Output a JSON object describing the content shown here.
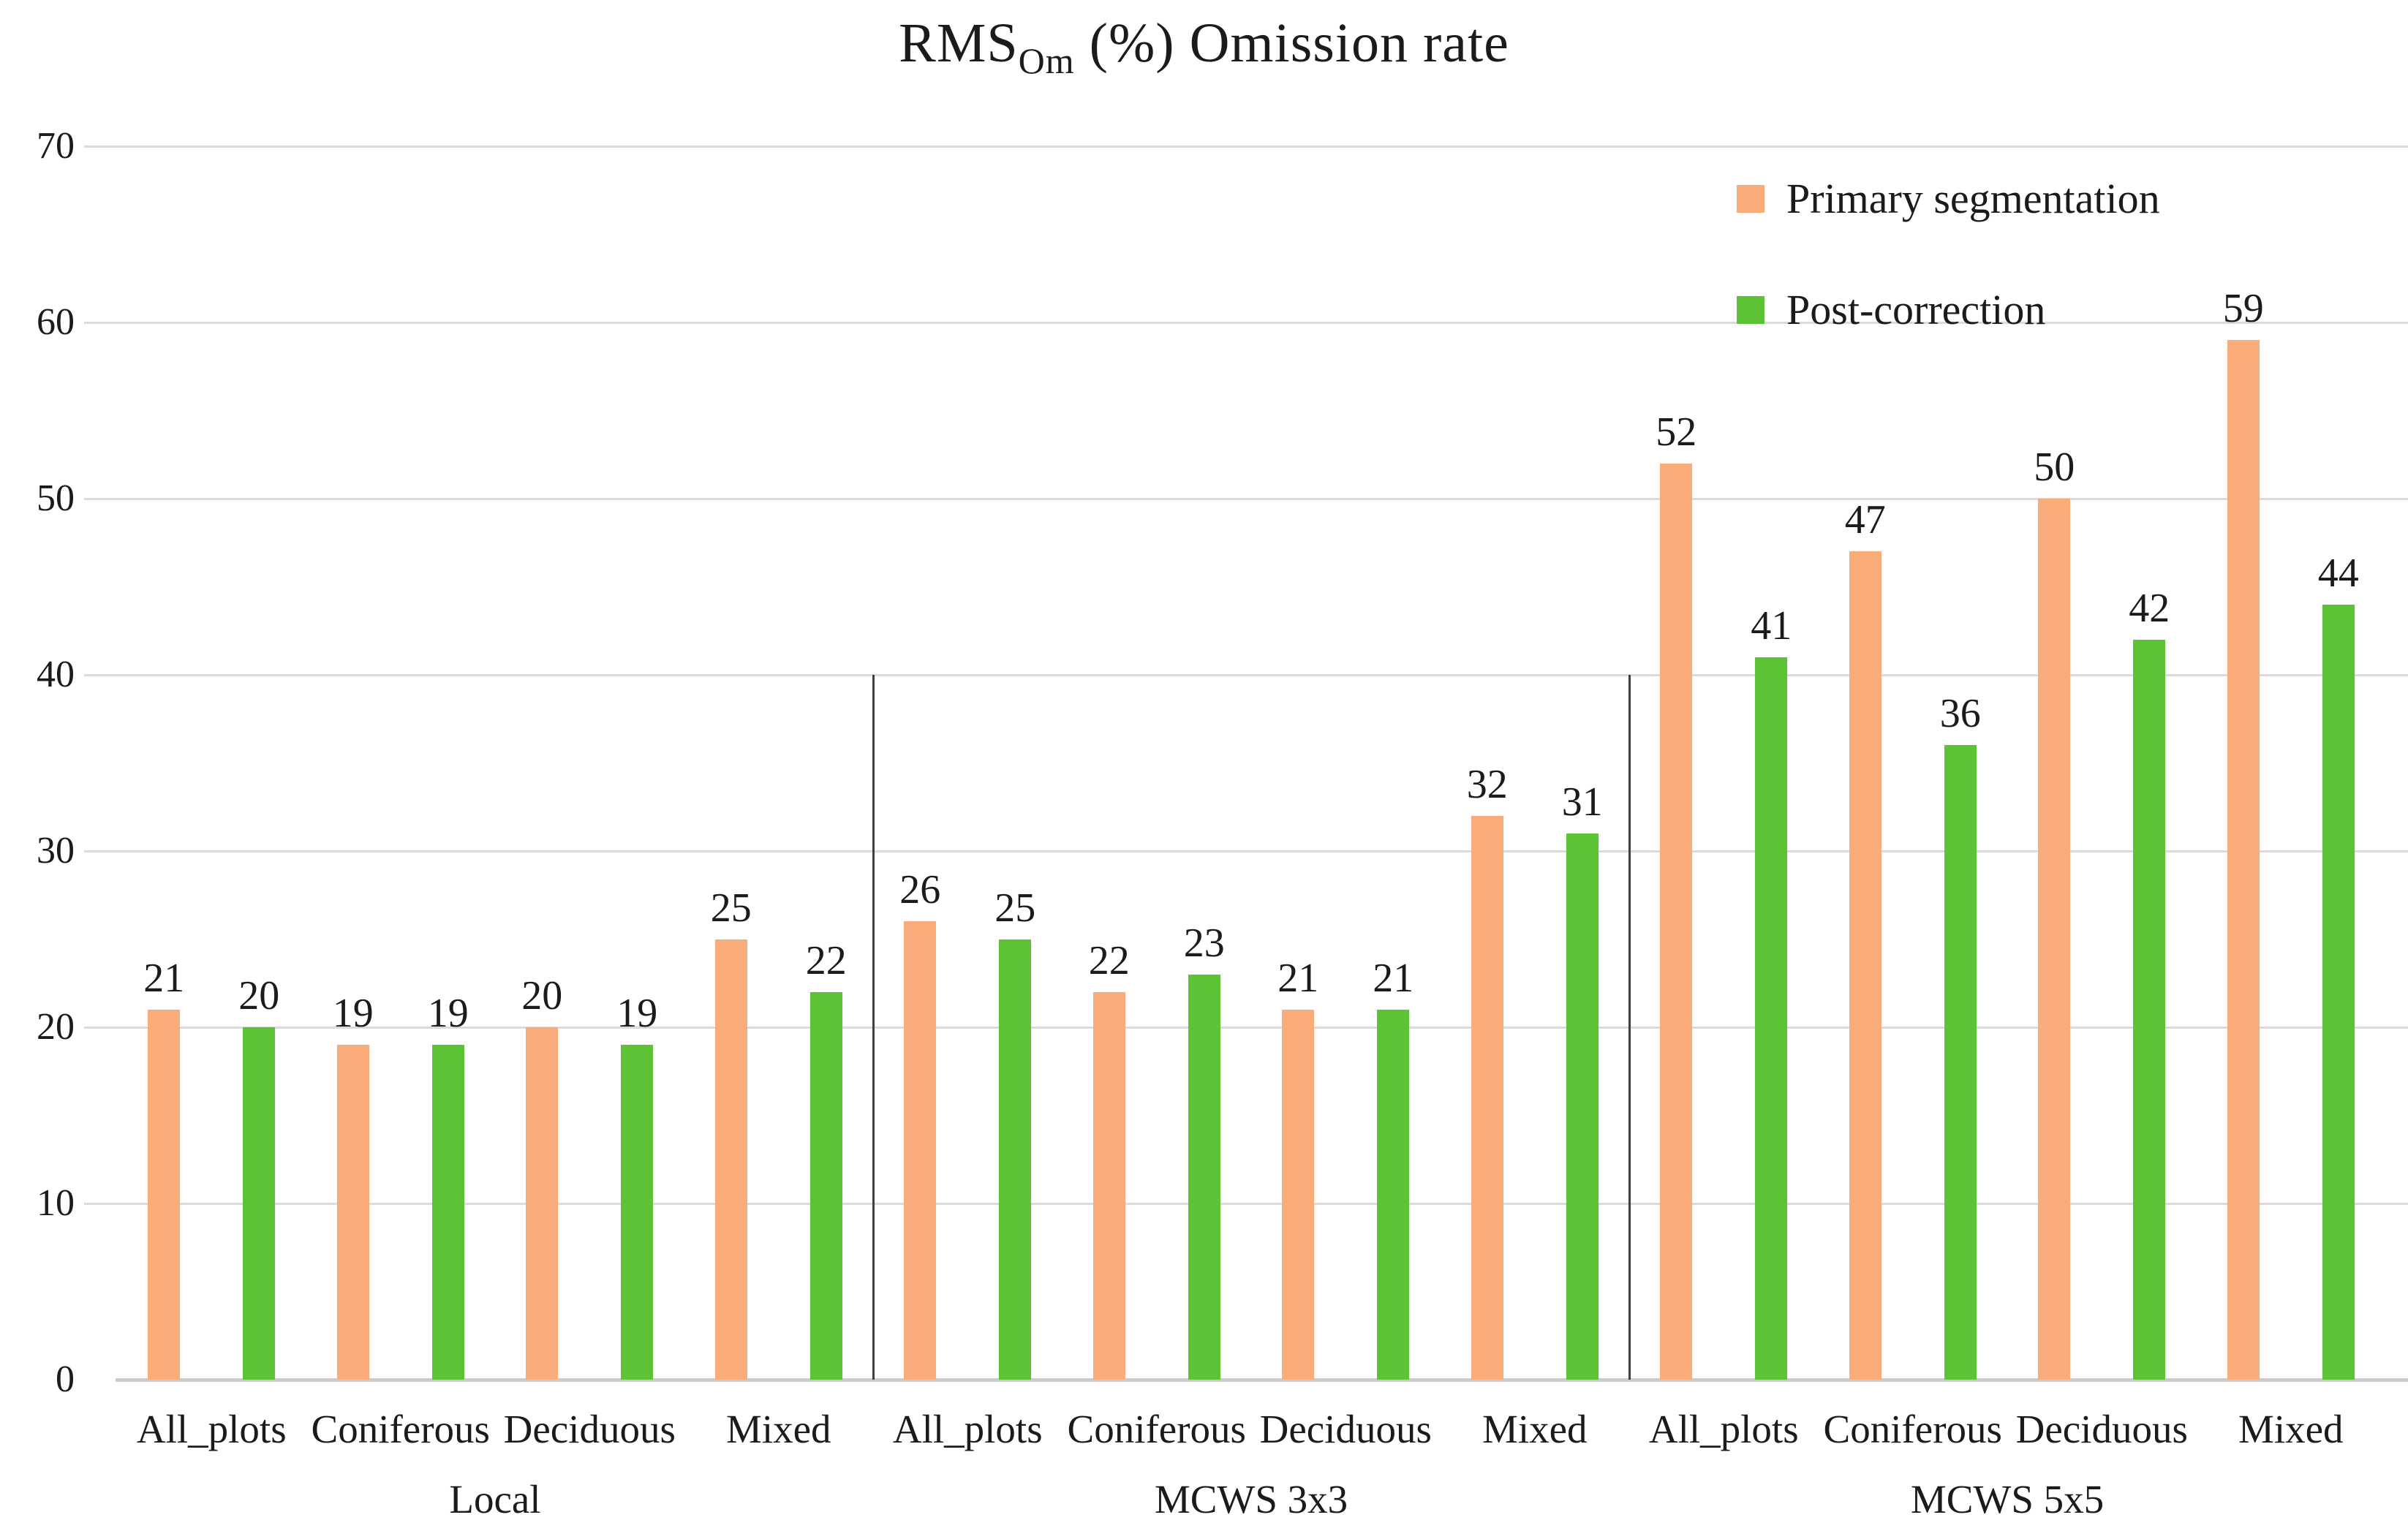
{
  "title": {
    "prefix": "RMS",
    "subscript": "Om",
    "suffix": " (%) Omission rate"
  },
  "chart_data": {
    "type": "bar",
    "title": "RMS_Om (%) Omission rate",
    "xlabel": "",
    "ylabel": "",
    "ylim": [
      0,
      70
    ],
    "yticks": [
      0,
      10,
      20,
      30,
      40,
      50,
      60,
      70
    ],
    "grid": "horizontal",
    "legend_position": "top-right",
    "group_dividers": true,
    "groups": [
      {
        "label": "Local",
        "categories": [
          "All_plots",
          "Coniferous",
          "Deciduous",
          "Mixed"
        ]
      },
      {
        "label": "MCWS 3x3",
        "categories": [
          "All_plots",
          "Coniferous",
          "Deciduous",
          "Mixed"
        ]
      },
      {
        "label": "MCWS 5x5",
        "categories": [
          "All_plots",
          "Coniferous",
          "Deciduous",
          "Mixed"
        ]
      }
    ],
    "series": [
      {
        "name": "Primary segmentation",
        "color": "#FAAD7B",
        "values": [
          21,
          19,
          20,
          25,
          26,
          22,
          21,
          32,
          52,
          47,
          50,
          59
        ]
      },
      {
        "name": "Post-correction",
        "color": "#5CC236",
        "values": [
          20,
          19,
          19,
          22,
          25,
          23,
          21,
          31,
          41,
          36,
          42,
          44
        ]
      }
    ],
    "colors": {
      "gridline": "#dbdbdb",
      "axis_line": "#cccccc",
      "divider": "#3f3f3f",
      "text": "#1b1b1b"
    }
  }
}
